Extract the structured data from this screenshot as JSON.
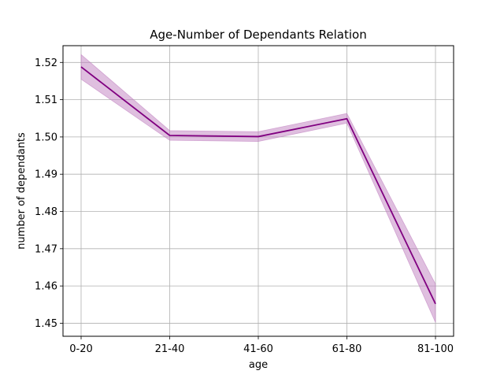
{
  "chart_data": {
    "type": "line",
    "title": "Age-Number of Dependants Relation",
    "xlabel": "age",
    "ylabel": "number of dependants",
    "categories": [
      "0-20",
      "21-40",
      "41-60",
      "61-80",
      "81-100"
    ],
    "series": [
      {
        "values": [
          1.5188,
          1.5004,
          1.5001,
          1.5049,
          1.4552
        ],
        "ci_lower": [
          1.5155,
          1.4991,
          1.4988,
          1.5037,
          1.4502
        ],
        "ci_upper": [
          1.5221,
          1.5017,
          1.5014,
          1.5063,
          1.4605
        ],
        "color": "#800080",
        "band_color": "#bf7fbf"
      }
    ],
    "ylim": [
      1.4465,
      1.5245
    ],
    "yticks": [
      1.45,
      1.46,
      1.47,
      1.48,
      1.49,
      1.5,
      1.51,
      1.52
    ],
    "ytick_labels": [
      "1.45",
      "1.46",
      "1.47",
      "1.48",
      "1.49",
      "1.50",
      "1.51",
      "1.52"
    ],
    "grid": true,
    "legend": "none"
  }
}
